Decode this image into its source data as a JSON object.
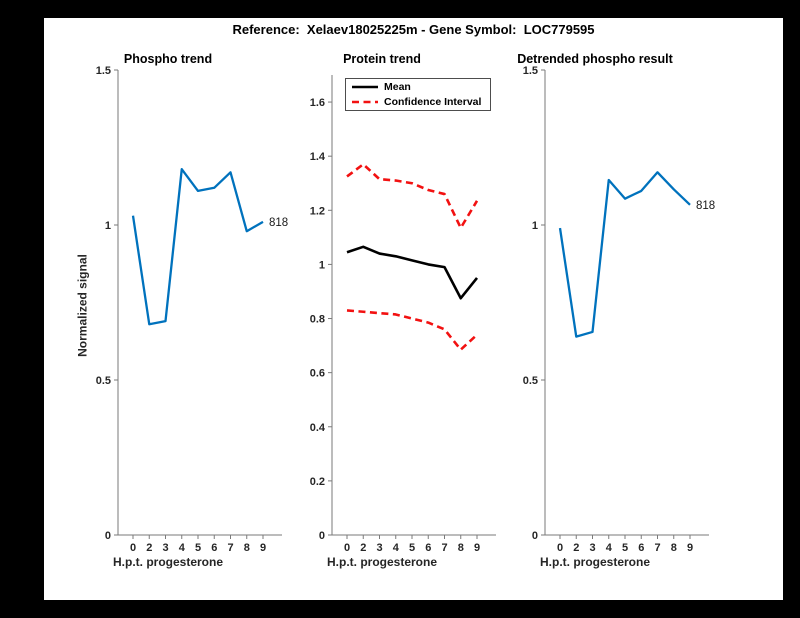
{
  "header": {
    "title": "Reference:  Xelaev18025225m - Gene Symbol:  LOC779595"
  },
  "colors": {
    "line_blue": "#0072BD",
    "line_black": "#000000",
    "line_red": "#f21111",
    "axis_gray": "#7a7a7a",
    "text_dark": "#262626"
  },
  "chart_data": [
    {
      "type": "line",
      "title": "Phospho trend",
      "xlabel": "H.p.t. progesterone",
      "ylabel": "Normalized signal",
      "x_ticklabels": [
        "0",
        "2",
        "3",
        "4",
        "5",
        "6",
        "7",
        "8",
        "9"
      ],
      "yticks": [
        0,
        0.5,
        1,
        1.5
      ],
      "ytick_labels": [
        "0",
        "0.5",
        "1",
        "1.5"
      ],
      "ylim": [
        0,
        1.5
      ],
      "grid": false,
      "series": [
        {
          "name": "818",
          "color": "#0072BD",
          "style": "solid",
          "values": [
            1.03,
            0.68,
            0.69,
            1.18,
            1.11,
            1.12,
            1.17,
            0.98,
            1.01
          ],
          "end_label": "818"
        }
      ]
    },
    {
      "type": "line",
      "title": "Protein trend",
      "xlabel": "H.p.t. progesterone",
      "ylabel": "",
      "x_ticklabels": [
        "0",
        "2",
        "3",
        "4",
        "5",
        "6",
        "7",
        "8",
        "9"
      ],
      "yticks": [
        0,
        0.2,
        0.4,
        0.6,
        0.8,
        1,
        1.2,
        1.4,
        1.6
      ],
      "ytick_labels": [
        "0",
        "0.2",
        "0.4",
        "0.6",
        "0.8",
        "1",
        "1.2",
        "1.4",
        "1.6"
      ],
      "ylim": [
        0,
        1.7
      ],
      "grid": false,
      "legend_position": "northwest",
      "series": [
        {
          "name": "Mean",
          "color": "#000000",
          "style": "solid",
          "values": [
            1.045,
            1.065,
            1.04,
            1.03,
            1.015,
            1.0,
            0.99,
            0.875,
            0.95
          ]
        },
        {
          "name": "Confidence Interval",
          "color": "#f21111",
          "style": "dashed",
          "values": [
            1.325,
            1.37,
            1.315,
            1.31,
            1.3,
            1.275,
            1.26,
            1.135,
            1.235
          ]
        },
        {
          "name": "Confidence Interval",
          "color": "#f21111",
          "style": "dashed",
          "values": [
            0.83,
            0.825,
            0.82,
            0.815,
            0.8,
            0.785,
            0.76,
            0.685,
            0.74
          ]
        }
      ],
      "legend": [
        {
          "label": "Mean",
          "color": "#000000",
          "style": "solid"
        },
        {
          "label": "Confidence Interval",
          "color": "#f21111",
          "style": "dashed"
        }
      ]
    },
    {
      "type": "line",
      "title": "Detrended phospho result",
      "xlabel": "H.p.t. progesterone",
      "ylabel": "",
      "x_ticklabels": [
        "0",
        "2",
        "3",
        "4",
        "5",
        "6",
        "7",
        "8",
        "9"
      ],
      "yticks": [
        0,
        0.5,
        1,
        1.5
      ],
      "ytick_labels": [
        "0",
        "0.5",
        "1",
        "1.5"
      ],
      "ylim": [
        0,
        1.5
      ],
      "grid": false,
      "series": [
        {
          "name": "818",
          "color": "#0072BD",
          "style": "solid",
          "values": [
            0.99,
            0.64,
            0.655,
            1.145,
            1.085,
            1.11,
            1.17,
            1.115,
            1.065
          ],
          "end_label": "818"
        }
      ]
    }
  ]
}
